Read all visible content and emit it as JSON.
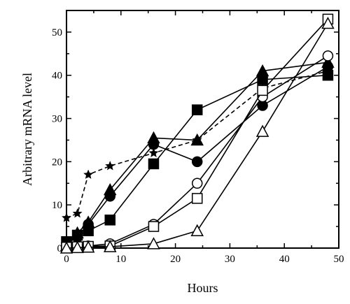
{
  "chart_data": {
    "type": "line",
    "title": "",
    "xlabel": "Hours",
    "ylabel": "Arbitrary mRNA level",
    "xlim": [
      0,
      50
    ],
    "ylim": [
      0,
      55
    ],
    "xticks": [
      0,
      10,
      20,
      30,
      40,
      50
    ],
    "yticks": [
      0,
      10,
      20,
      30,
      40,
      50
    ],
    "grid": false,
    "legend": "none",
    "series": [
      {
        "marker": "star",
        "dashed": true,
        "x": [
          0,
          2,
          4,
          8,
          16,
          24,
          36,
          48
        ],
        "y": [
          7,
          8,
          17,
          19,
          22,
          25,
          37,
          41
        ]
      },
      {
        "marker": "filled-square",
        "x": [
          0,
          2,
          4,
          8,
          16,
          24,
          36,
          48
        ],
        "y": [
          1.5,
          3,
          4,
          6.5,
          19.5,
          32,
          39,
          40
        ]
      },
      {
        "marker": "filled-circle",
        "x": [
          0,
          2,
          4,
          8,
          16,
          24,
          36,
          48
        ],
        "y": [
          1,
          2.5,
          5.5,
          12,
          24,
          20,
          33,
          42
        ]
      },
      {
        "marker": "filled-triangle",
        "x": [
          0,
          2,
          4,
          8,
          16,
          24,
          36,
          48
        ],
        "y": [
          0.5,
          3.5,
          6,
          13.5,
          25.5,
          25,
          41,
          43
        ]
      },
      {
        "marker": "open-circle",
        "x": [
          0,
          2,
          4,
          8,
          16,
          24,
          36,
          48
        ],
        "y": [
          0.3,
          0.4,
          0.5,
          1,
          5.5,
          15,
          35,
          44.5
        ]
      },
      {
        "marker": "open-square",
        "x": [
          0,
          2,
          4,
          8,
          16,
          24,
          36,
          48
        ],
        "y": [
          0.2,
          0.3,
          0.4,
          0.5,
          5,
          11.5,
          36.5,
          53
        ]
      },
      {
        "marker": "open-triangle",
        "x": [
          0,
          2,
          4,
          8,
          16,
          24,
          36,
          48
        ],
        "y": [
          0,
          0.1,
          0.2,
          0.3,
          1,
          4,
          27,
          52
        ]
      }
    ]
  }
}
